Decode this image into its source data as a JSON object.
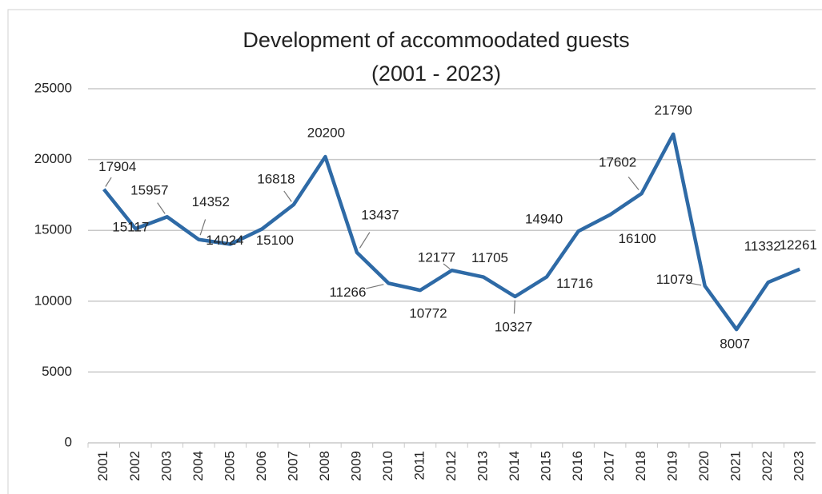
{
  "chart_data": {
    "type": "line",
    "title": [
      "Development of accommoodated guests",
      "(2001 - 2023)"
    ],
    "categories": [
      "2001",
      "2002",
      "2003",
      "2004",
      "2005",
      "2006",
      "2007",
      "2008",
      "2009",
      "2010",
      "2011",
      "2012",
      "2013",
      "2014",
      "2015",
      "2016",
      "2017",
      "2018",
      "2019",
      "2020",
      "2021",
      "2022",
      "2023"
    ],
    "series": [
      {
        "name": "Accommodated guests",
        "color": "#2e6aa6",
        "values": [
          17904,
          15117,
          15957,
          14352,
          14024,
          15100,
          16818,
          20200,
          13437,
          11266,
          10772,
          12177,
          11705,
          10327,
          11716,
          14940,
          16100,
          17602,
          21790,
          11079,
          8007,
          11332,
          12261
        ]
      }
    ],
    "ylim": [
      0,
      25000
    ],
    "yticks": [
      0,
      5000,
      10000,
      15000,
      20000,
      25000
    ],
    "grid": true
  }
}
